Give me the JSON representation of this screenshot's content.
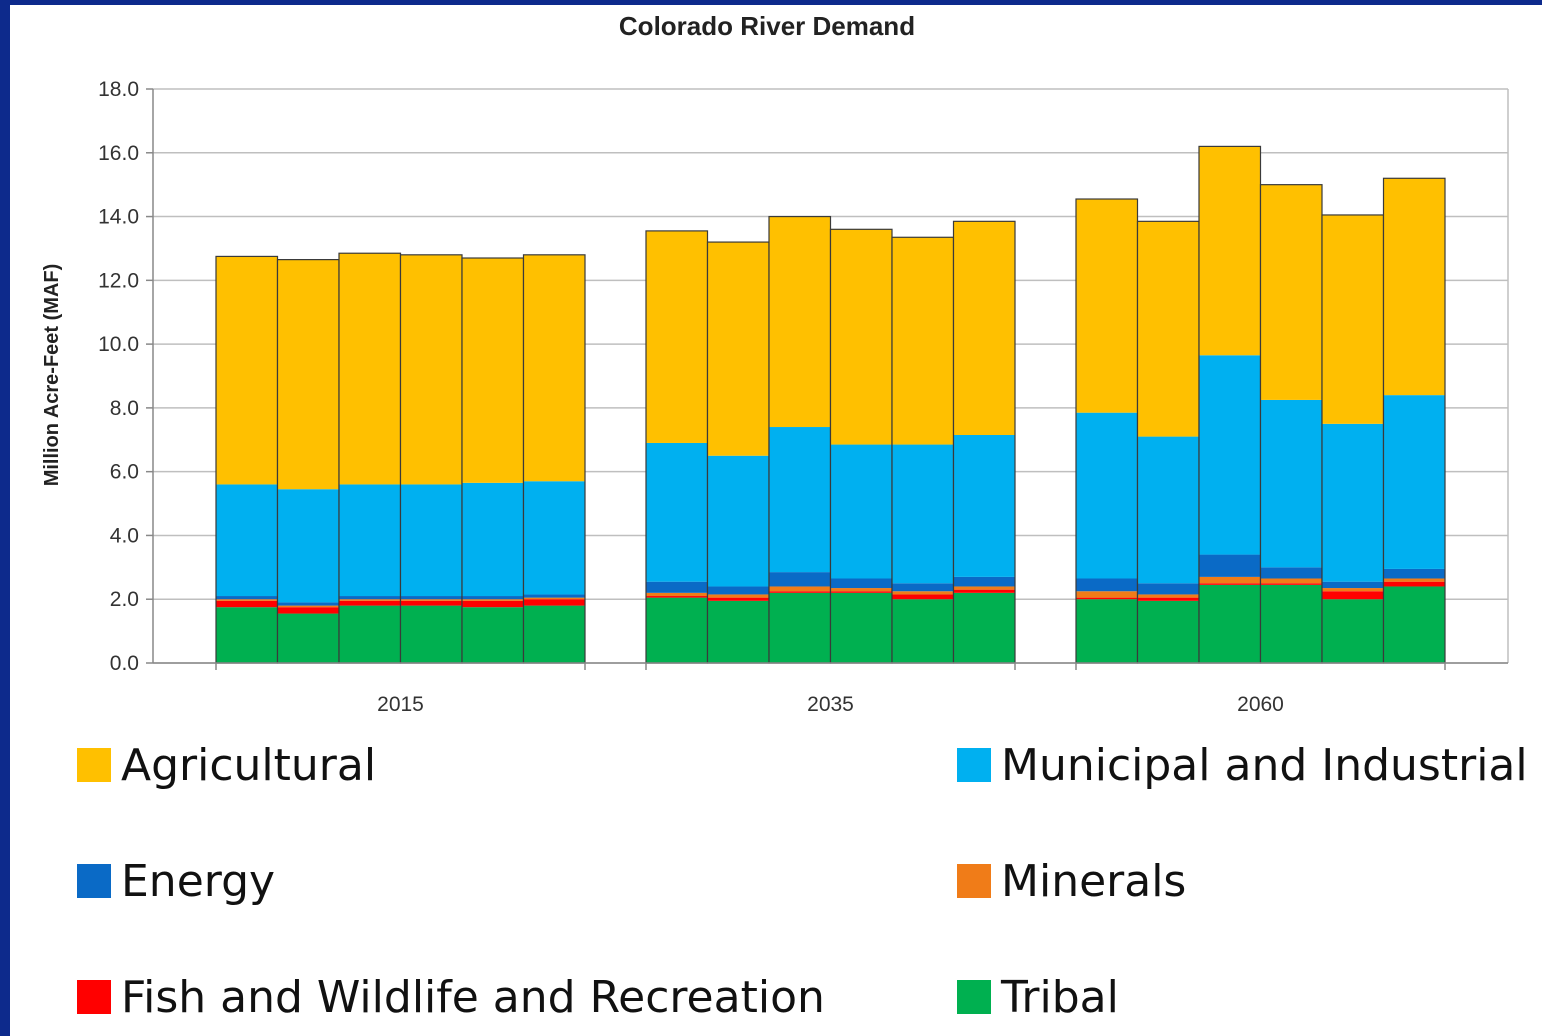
{
  "chart_data": {
    "type": "bar",
    "stacked": true,
    "title": "Colorado River Demand",
    "ylabel": "Million Acre-Feet (MAF)",
    "xlabel": "",
    "ylim": [
      0,
      18
    ],
    "yticks": [
      "0.0",
      "2.0",
      "4.0",
      "6.0",
      "8.0",
      "10.0",
      "12.0",
      "14.0",
      "16.0",
      "18.0"
    ],
    "groups": [
      "2015",
      "2035",
      "2060"
    ],
    "bars_per_group": 6,
    "series": [
      {
        "name": "Tribal",
        "color": "#00b050",
        "values": [
          1.75,
          1.55,
          1.8,
          1.8,
          1.75,
          1.8,
          2.05,
          1.95,
          2.2,
          2.2,
          2.0,
          2.2,
          2.0,
          1.95,
          2.45,
          2.45,
          2.0,
          2.4
        ]
      },
      {
        "name": "Fish and Wildlife and Recreation",
        "color": "#ff0000",
        "values": [
          0.2,
          0.2,
          0.15,
          0.15,
          0.2,
          0.2,
          0.05,
          0.1,
          0.05,
          0.05,
          0.15,
          0.1,
          0.05,
          0.1,
          0.05,
          0.05,
          0.25,
          0.15
        ]
      },
      {
        "name": "Minerals",
        "color": "#f07c18",
        "values": [
          0.05,
          0.05,
          0.05,
          0.05,
          0.05,
          0.05,
          0.1,
          0.1,
          0.15,
          0.1,
          0.1,
          0.1,
          0.2,
          0.1,
          0.2,
          0.15,
          0.1,
          0.1
        ]
      },
      {
        "name": "Energy",
        "color": "#0a6ac6",
        "values": [
          0.1,
          0.1,
          0.1,
          0.1,
          0.1,
          0.1,
          0.35,
          0.25,
          0.45,
          0.3,
          0.25,
          0.3,
          0.4,
          0.35,
          0.7,
          0.35,
          0.2,
          0.3
        ]
      },
      {
        "name": "Municipal and Industrial",
        "color": "#00b0f0",
        "values": [
          3.5,
          3.55,
          3.5,
          3.5,
          3.55,
          3.55,
          4.35,
          4.1,
          4.55,
          4.2,
          4.35,
          4.45,
          5.2,
          4.6,
          6.25,
          5.25,
          4.95,
          5.45
        ]
      },
      {
        "name": "Agricultural",
        "color": "#ffc000",
        "values": [
          7.15,
          7.2,
          7.25,
          7.2,
          7.05,
          7.1,
          6.65,
          6.7,
          6.6,
          6.75,
          6.5,
          6.7,
          6.7,
          6.75,
          6.55,
          6.75,
          6.55,
          6.8
        ]
      }
    ],
    "legend_position": "bottom",
    "grid": true
  },
  "legend": {
    "items": [
      {
        "label": "Agricultural",
        "color": "#ffc000"
      },
      {
        "label": "Municipal and Industrial",
        "color": "#00b0f0"
      },
      {
        "label": "Energy",
        "color": "#0a6ac6"
      },
      {
        "label": "Minerals",
        "color": "#f07c18"
      },
      {
        "label": "Fish and Wildlife and Recreation",
        "color": "#ff0000"
      },
      {
        "label": "Tribal",
        "color": "#00b050"
      }
    ]
  },
  "colors": {
    "background_border": "#0d2a8c",
    "gridline": "#bfbfbf"
  }
}
